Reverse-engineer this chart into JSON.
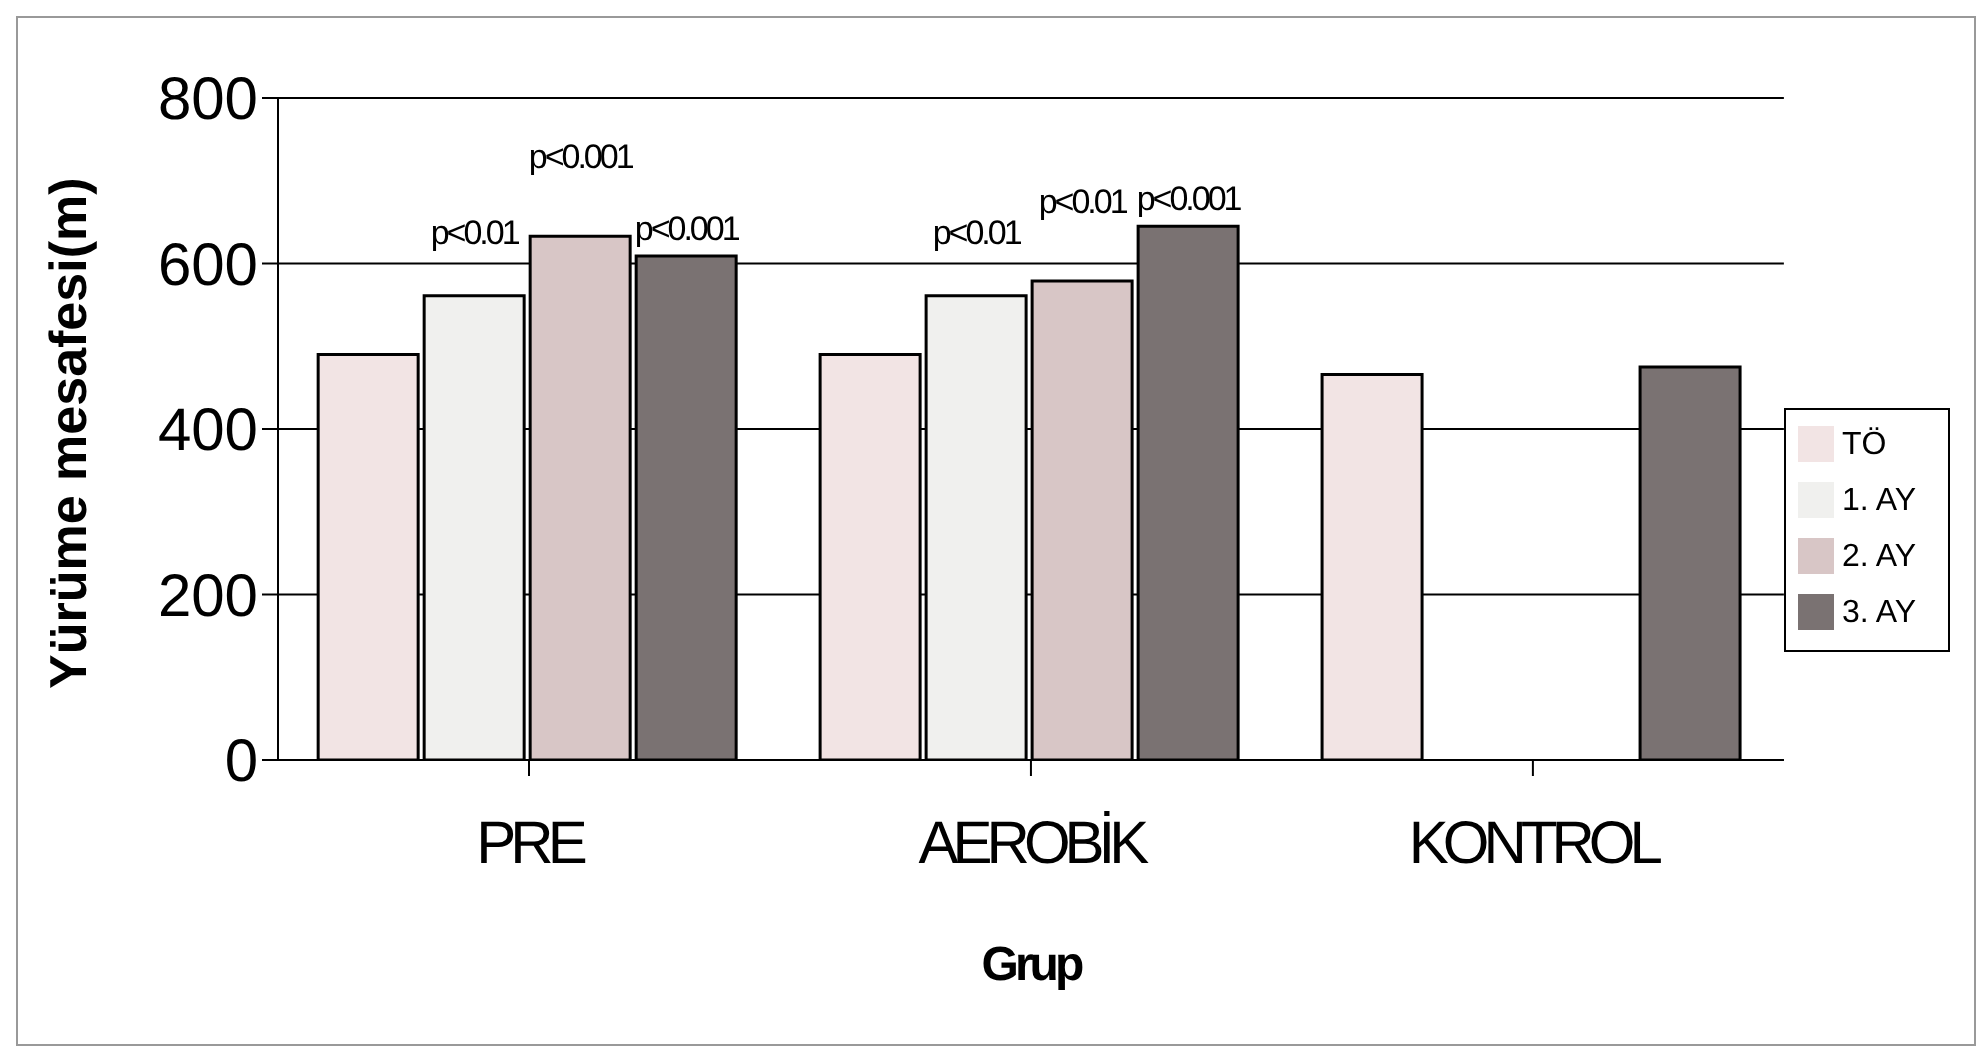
{
  "chart_data": {
    "type": "bar",
    "xlabel": "Grup",
    "ylabel": "Yürüme mesafesi(m)",
    "categories": [
      "PRE",
      "AEROBİK",
      "KONTROL"
    ],
    "series": [
      {
        "name": "TÖ",
        "color": "#f2e4e4",
        "values": [
          490,
          490,
          466
        ]
      },
      {
        "name": "1. AY",
        "color": "#f0f0ee",
        "values": [
          561,
          561,
          null
        ],
        "value_labels": [
          "p<0.01",
          "p<0.01",
          null
        ]
      },
      {
        "name": "2. AY",
        "color": "#d8c6c6",
        "values": [
          633,
          579,
          null
        ],
        "value_labels": [
          "p<0.001",
          "p<0.01",
          null
        ]
      },
      {
        "name": "3. AY",
        "color": "#7a7272",
        "values": [
          609,
          645,
          475
        ],
        "value_labels": [
          "p<0.001",
          "p<0.001",
          null
        ]
      }
    ],
    "ylim": [
      0,
      800
    ],
    "yticks": [
      0,
      200,
      400,
      600,
      800
    ],
    "grid": "y",
    "legend": "right"
  }
}
